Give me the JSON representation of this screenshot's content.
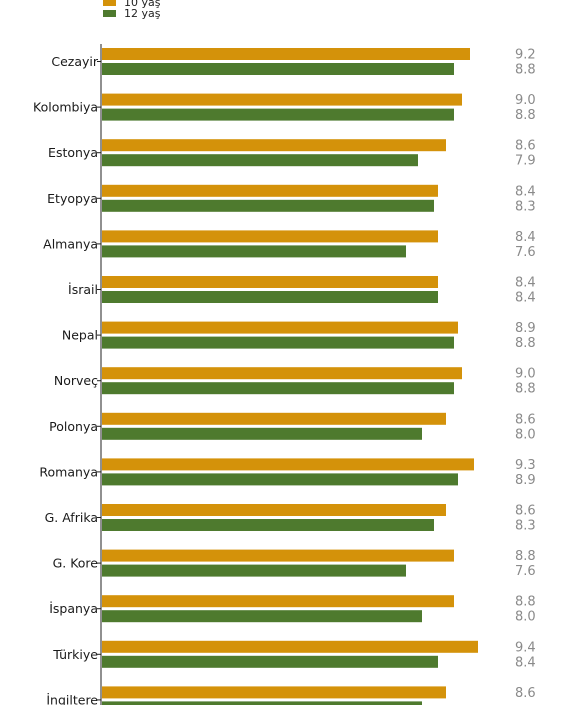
{
  "colors": {
    "age10": "#d4920a",
    "age12": "#4e7a2e",
    "axis": "#222222"
  },
  "chart_data": {
    "type": "bar",
    "orientation": "horizontal",
    "categories": [
      "Cezayir",
      "Kolombiya",
      "Estonya",
      "Etyopya",
      "Almanya",
      "İsrail",
      "Nepal",
      "Norveç",
      "Polonya",
      "Romanya",
      "G. Afrika",
      "G. Kore",
      "İspanya",
      "Türkiye",
      "İngiltere"
    ],
    "series": [
      {
        "name": "10 yaş",
        "color": "#d4920a",
        "values": [
          9.2,
          9.0,
          8.6,
          8.4,
          8.4,
          8.4,
          8.9,
          9.0,
          8.6,
          9.3,
          8.6,
          8.8,
          8.8,
          9.4,
          8.6
        ]
      },
      {
        "name": "12 yaş",
        "color": "#4e7a2e",
        "values": [
          8.8,
          8.8,
          7.9,
          8.3,
          7.6,
          8.4,
          8.8,
          8.8,
          8.0,
          8.9,
          8.3,
          7.6,
          8.0,
          8.4,
          8.0
        ]
      }
    ],
    "value_labels": {
      "10 yaş": [
        "9.2",
        "9.0",
        "8.6",
        "8.4",
        "8.4",
        "8.4",
        "8.9",
        "9.0",
        "8.6",
        "9.3",
        "8.6",
        "8.8",
        "8.8",
        "9.4",
        "8.6"
      ],
      "12 yaş": [
        "8.8",
        "8.8",
        "7.9",
        "8.3",
        "7.6",
        "8.4",
        "8.8",
        "8.8",
        "8.0",
        "8.9",
        "8.3",
        "7.6",
        "8.0",
        "8.4",
        ""
      ]
    },
    "xlim": [
      0,
      10
    ],
    "legend": "top-left",
    "grid": false
  }
}
